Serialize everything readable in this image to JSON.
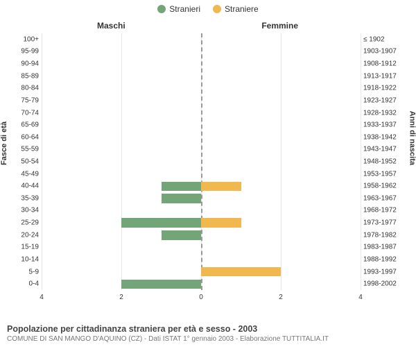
{
  "chart": {
    "type": "population-pyramid",
    "legend": [
      {
        "label": "Stranieri",
        "color": "#74a578"
      },
      {
        "label": "Straniere",
        "color": "#f0b84f"
      }
    ],
    "leftHeader": "Maschi",
    "rightHeader": "Femmine",
    "yAxisLeftLabel": "Fasce di età",
    "yAxisRightLabel": "Anni di nascita",
    "xMax": 4,
    "xTicks": [
      4,
      2,
      0,
      2,
      4
    ],
    "maleColor": "#74a578",
    "femaleColor": "#f0b84f",
    "gridColor": "#e6e6e6",
    "background": "#ffffff",
    "rows": [
      {
        "age": "100+",
        "birth": "≤ 1902",
        "m": 0,
        "f": 0
      },
      {
        "age": "95-99",
        "birth": "1903-1907",
        "m": 0,
        "f": 0
      },
      {
        "age": "90-94",
        "birth": "1908-1912",
        "m": 0,
        "f": 0
      },
      {
        "age": "85-89",
        "birth": "1913-1917",
        "m": 0,
        "f": 0
      },
      {
        "age": "80-84",
        "birth": "1918-1922",
        "m": 0,
        "f": 0
      },
      {
        "age": "75-79",
        "birth": "1923-1927",
        "m": 0,
        "f": 0
      },
      {
        "age": "70-74",
        "birth": "1928-1932",
        "m": 0,
        "f": 0
      },
      {
        "age": "65-69",
        "birth": "1933-1937",
        "m": 0,
        "f": 0
      },
      {
        "age": "60-64",
        "birth": "1938-1942",
        "m": 0,
        "f": 0
      },
      {
        "age": "55-59",
        "birth": "1943-1947",
        "m": 0,
        "f": 0
      },
      {
        "age": "50-54",
        "birth": "1948-1952",
        "m": 0,
        "f": 0
      },
      {
        "age": "45-49",
        "birth": "1953-1957",
        "m": 0,
        "f": 0
      },
      {
        "age": "40-44",
        "birth": "1958-1962",
        "m": 1,
        "f": 1
      },
      {
        "age": "35-39",
        "birth": "1963-1967",
        "m": 1,
        "f": 0
      },
      {
        "age": "30-34",
        "birth": "1968-1972",
        "m": 0,
        "f": 0
      },
      {
        "age": "25-29",
        "birth": "1973-1977",
        "m": 2,
        "f": 1
      },
      {
        "age": "20-24",
        "birth": "1978-1982",
        "m": 1,
        "f": 0
      },
      {
        "age": "15-19",
        "birth": "1983-1987",
        "m": 0,
        "f": 0
      },
      {
        "age": "10-14",
        "birth": "1988-1992",
        "m": 0,
        "f": 0
      },
      {
        "age": "5-9",
        "birth": "1993-1997",
        "m": 0,
        "f": 2
      },
      {
        "age": "0-4",
        "birth": "1998-2002",
        "m": 2,
        "f": 0
      }
    ],
    "footerTitle": "Popolazione per cittadinanza straniera per età e sesso - 2003",
    "footerSub": "COMUNE DI SAN MANGO D'AQUINO (CZ) - Dati ISTAT 1° gennaio 2003 - Elaborazione TUTTITALIA.IT"
  }
}
